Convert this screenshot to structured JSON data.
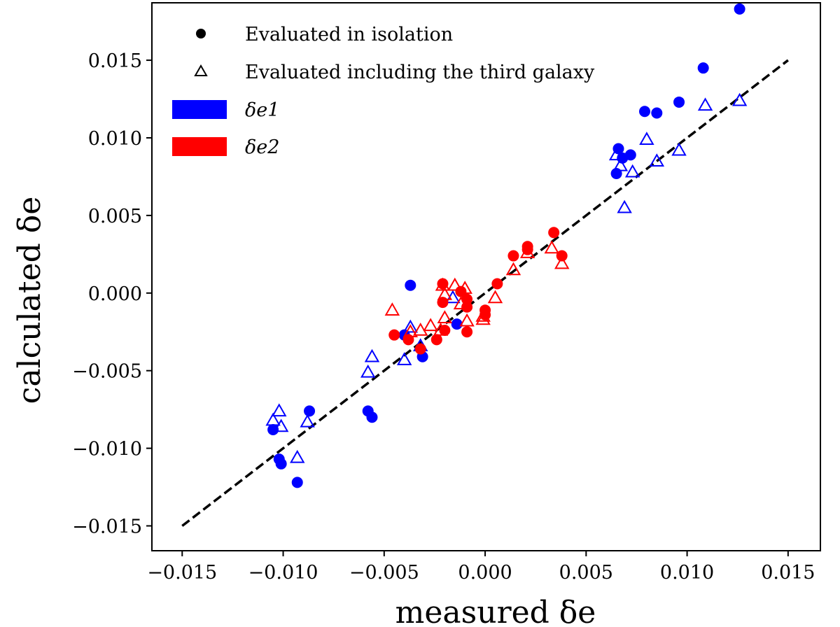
{
  "chart_data": {
    "type": "scatter",
    "xlabel": "measured δe",
    "ylabel": "calculated δe",
    "xlim": [
      -0.0165,
      0.0166
    ],
    "ylim": [
      -0.0166,
      0.0187
    ],
    "x_ticks": [
      -0.015,
      -0.01,
      -0.005,
      0.0,
      0.005,
      0.01,
      0.015
    ],
    "y_ticks": [
      -0.015,
      -0.01,
      -0.005,
      0.0,
      0.005,
      0.01,
      0.015
    ],
    "x_tick_labels": [
      "−0.015",
      "−0.010",
      "−0.005",
      "0.000",
      "0.005",
      "0.010",
      "0.015"
    ],
    "y_tick_labels": [
      "−0.015",
      "−0.010",
      "−0.005",
      "0.000",
      "0.005",
      "0.010",
      "0.015"
    ],
    "grid": false,
    "legend_position": "top-left",
    "legend": {
      "isolation_label": "Evaluated in isolation",
      "third_label": "Evaluated including the third galaxy",
      "e1_label": "δe1",
      "e2_label": "δe2"
    },
    "colors": {
      "e1": "#0000ff",
      "e2": "#ff0000",
      "reference_line": "#000000"
    },
    "reference_line": {
      "style": "dashed",
      "points": [
        [
          -0.015,
          -0.015
        ],
        [
          0.015,
          0.015
        ]
      ]
    },
    "series": [
      {
        "name": "δe1",
        "marker": "filled-circle",
        "color": "#0000ff",
        "points": [
          [
            0.0126,
            0.0183
          ],
          [
            0.0108,
            0.0145
          ],
          [
            0.0096,
            0.0123
          ],
          [
            0.0079,
            0.0117
          ],
          [
            0.0085,
            0.0116
          ],
          [
            0.0066,
            0.0093
          ],
          [
            0.0072,
            0.0089
          ],
          [
            0.0068,
            0.0087
          ],
          [
            0.0065,
            0.0077
          ],
          [
            -0.0037,
            0.0005
          ],
          [
            -0.004,
            -0.0027
          ],
          [
            -0.0014,
            -0.002
          ],
          [
            -0.0031,
            -0.0041
          ],
          [
            -0.0105,
            -0.0088
          ],
          [
            -0.0087,
            -0.0076
          ],
          [
            -0.0058,
            -0.0076
          ],
          [
            -0.0056,
            -0.008
          ],
          [
            -0.0102,
            -0.0107
          ],
          [
            -0.0101,
            -0.011
          ],
          [
            -0.0093,
            -0.0122
          ]
        ]
      },
      {
        "name": "δe1",
        "marker": "open-triangle",
        "color": "#0000ff",
        "points": [
          [
            0.0126,
            0.0124
          ],
          [
            0.0109,
            0.0121
          ],
          [
            0.008,
            0.0099
          ],
          [
            0.0096,
            0.0092
          ],
          [
            0.0085,
            0.0085
          ],
          [
            0.0065,
            0.0089
          ],
          [
            0.0067,
            0.0082
          ],
          [
            0.0073,
            0.0078
          ],
          [
            0.0069,
            0.0055
          ],
          [
            -0.0037,
            -0.0022
          ],
          [
            -0.0016,
            -0.0003
          ],
          [
            -0.0032,
            -0.0034
          ],
          [
            -0.004,
            -0.0043
          ],
          [
            -0.0056,
            -0.0041
          ],
          [
            -0.0058,
            -0.0051
          ],
          [
            -0.0105,
            -0.0082
          ],
          [
            -0.0102,
            -0.0076
          ],
          [
            -0.0101,
            -0.0086
          ],
          [
            -0.0088,
            -0.0083
          ],
          [
            -0.0093,
            -0.0106
          ]
        ]
      },
      {
        "name": "δe2",
        "marker": "filled-circle",
        "color": "#ff0000",
        "points": [
          [
            0.0034,
            0.0039
          ],
          [
            0.0021,
            0.003
          ],
          [
            0.0021,
            0.0028
          ],
          [
            0.0038,
            0.0024
          ],
          [
            0.0014,
            0.0024
          ],
          [
            0.0006,
            0.0006
          ],
          [
            -0.0021,
            0.0006
          ],
          [
            -0.0012,
            0.0001
          ],
          [
            -0.0021,
            -0.0006
          ],
          [
            -0.0009,
            -0.0004
          ],
          [
            -0.0009,
            -0.0009
          ],
          [
            0.0,
            -0.0011
          ],
          [
            0.0,
            -0.0014
          ],
          [
            -0.002,
            -0.0024
          ],
          [
            -0.0009,
            -0.0025
          ],
          [
            -0.0045,
            -0.0027
          ],
          [
            -0.0024,
            -0.003
          ],
          [
            -0.0038,
            -0.003
          ],
          [
            -0.0032,
            -0.0036
          ]
        ]
      },
      {
        "name": "δe2",
        "marker": "open-triangle",
        "color": "#ff0000",
        "points": [
          [
            0.0033,
            0.0029
          ],
          [
            0.0021,
            0.0026
          ],
          [
            0.0038,
            0.0019
          ],
          [
            0.0014,
            0.0015
          ],
          [
            0.0005,
            -0.0003
          ],
          [
            -0.0015,
            0.0005
          ],
          [
            -0.0021,
            0.0005
          ],
          [
            -0.001,
            0.0003
          ],
          [
            -0.002,
            -0.0001
          ],
          [
            -0.0012,
            -0.0007
          ],
          [
            -0.002,
            -0.0016
          ],
          [
            -0.0009,
            -0.0018
          ],
          [
            -0.0001,
            -0.0015
          ],
          [
            -0.0001,
            -0.0017
          ],
          [
            -0.0046,
            -0.0011
          ],
          [
            -0.0027,
            -0.0021
          ],
          [
            -0.0022,
            -0.0024
          ],
          [
            -0.0032,
            -0.0024
          ],
          [
            -0.0037,
            -0.0025
          ]
        ]
      }
    ]
  }
}
